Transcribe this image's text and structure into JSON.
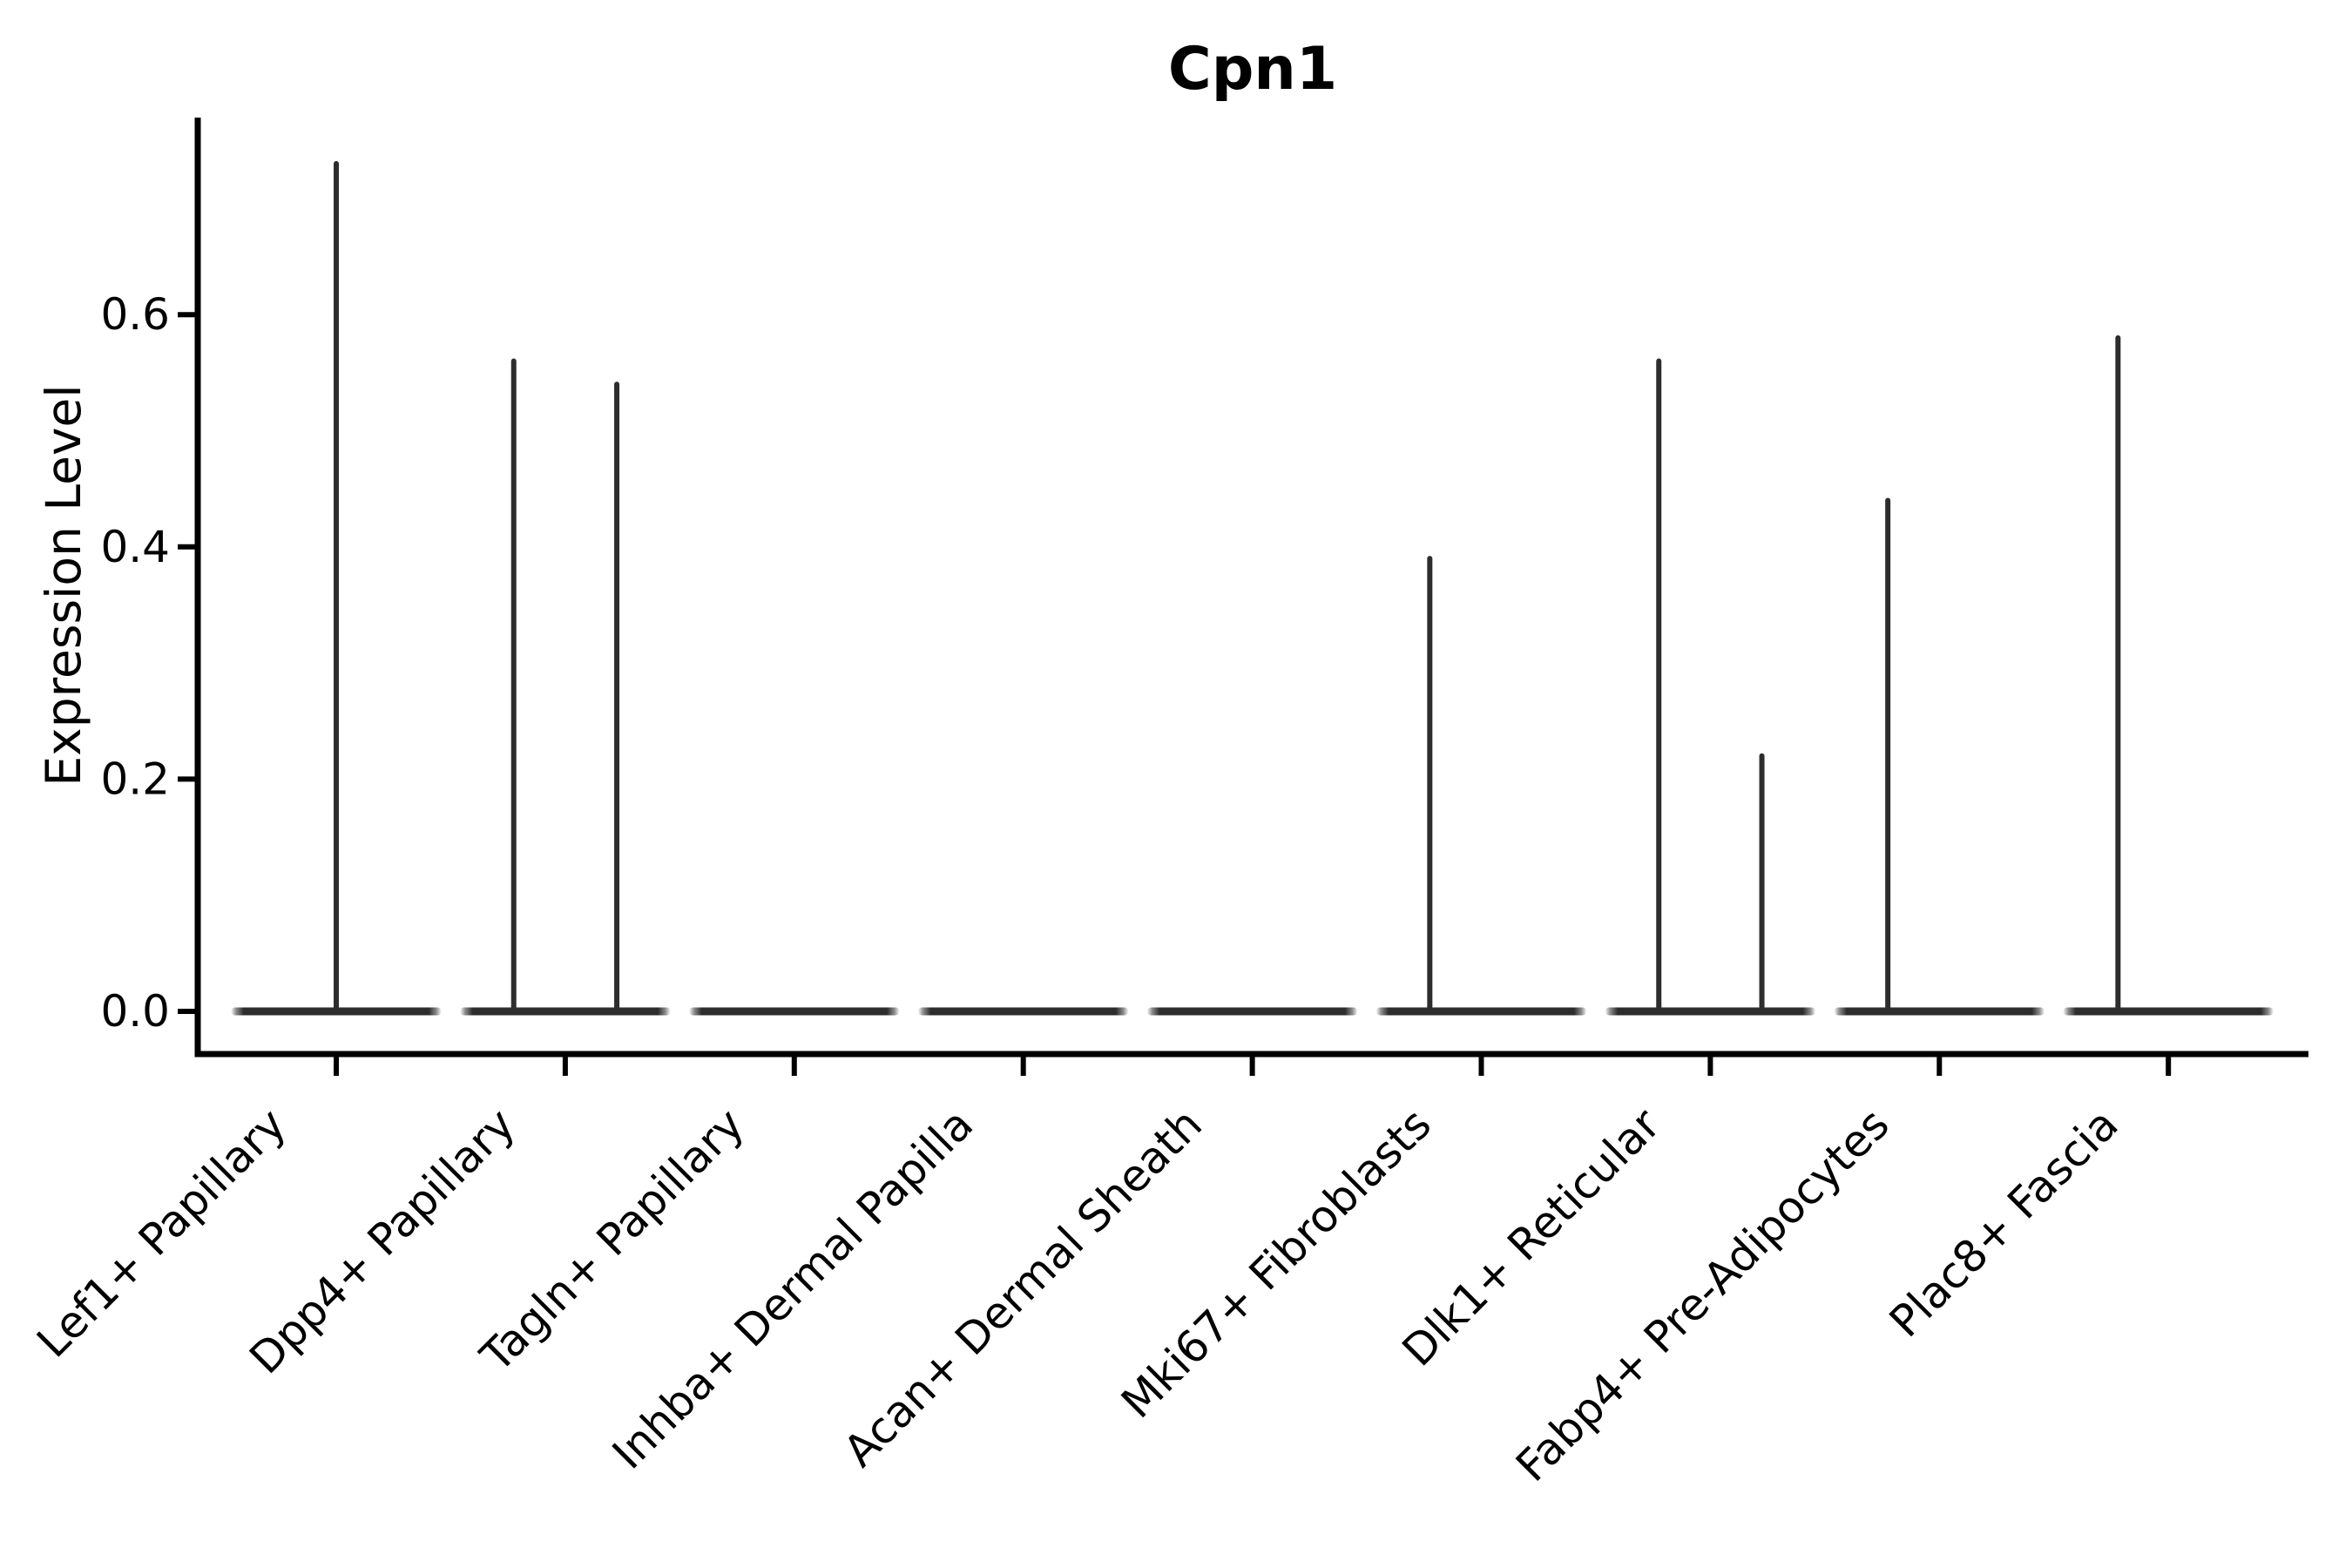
{
  "figure": {
    "background": "#ffffff"
  },
  "chart_data": {
    "type": "violin",
    "title": "Cpn1",
    "xlabel": "",
    "ylabel": "Expression Level",
    "ylim": [
      -0.04,
      0.77
    ],
    "y_ticks": [
      "0.0",
      "0.2",
      "0.4",
      "0.6"
    ],
    "y_tick_values": [
      0.0,
      0.2,
      0.4,
      0.6
    ],
    "grid": false,
    "legend": "none",
    "line_color": "#2d2d2d",
    "axis_color": "#000000",
    "text_color": "#000000",
    "violin_halfwidth_units": 0.46,
    "categories": [
      "Lef1+ Papillary",
      "Dpp4+ Papillary",
      "Tagln+ Papillary",
      "Inhba+ Dermal Papilla",
      "Acan+ Dermal Sheath",
      "Mki67+ Fibroblasts",
      "Dlk1+ Reticular",
      "Fabp4+ Pre-Adipocytes",
      "Plac8+ Fascia"
    ],
    "violins": [
      {
        "category": "Lef1+ Papillary",
        "baseline_value": 0.0,
        "spikes": [
          {
            "offset_units": 0.0,
            "max_value": 0.73
          }
        ]
      },
      {
        "category": "Dpp4+ Papillary",
        "baseline_value": 0.0,
        "spikes": [
          {
            "offset_units": -0.225,
            "max_value": 0.56
          },
          {
            "offset_units": 0.225,
            "max_value": 0.54
          }
        ]
      },
      {
        "category": "Tagln+ Papillary",
        "baseline_value": 0.0,
        "spikes": []
      },
      {
        "category": "Inhba+ Dermal Papilla",
        "baseline_value": 0.0,
        "spikes": []
      },
      {
        "category": "Acan+ Dermal Sheath",
        "baseline_value": 0.0,
        "spikes": []
      },
      {
        "category": "Mki67+ Fibroblasts",
        "baseline_value": 0.0,
        "spikes": [
          {
            "offset_units": -0.225,
            "max_value": 0.39
          }
        ]
      },
      {
        "category": "Dlk1+ Reticular",
        "baseline_value": 0.0,
        "spikes": [
          {
            "offset_units": -0.225,
            "max_value": 0.56
          },
          {
            "offset_units": 0.225,
            "max_value": 0.22
          }
        ]
      },
      {
        "category": "Fabp4+ Pre-Adipocytes",
        "baseline_value": 0.0,
        "spikes": [
          {
            "offset_units": -0.225,
            "max_value": 0.44
          }
        ]
      },
      {
        "category": "Plac8+ Fascia",
        "baseline_value": 0.0,
        "spikes": [
          {
            "offset_units": -0.22,
            "max_value": 0.58
          }
        ]
      }
    ]
  }
}
